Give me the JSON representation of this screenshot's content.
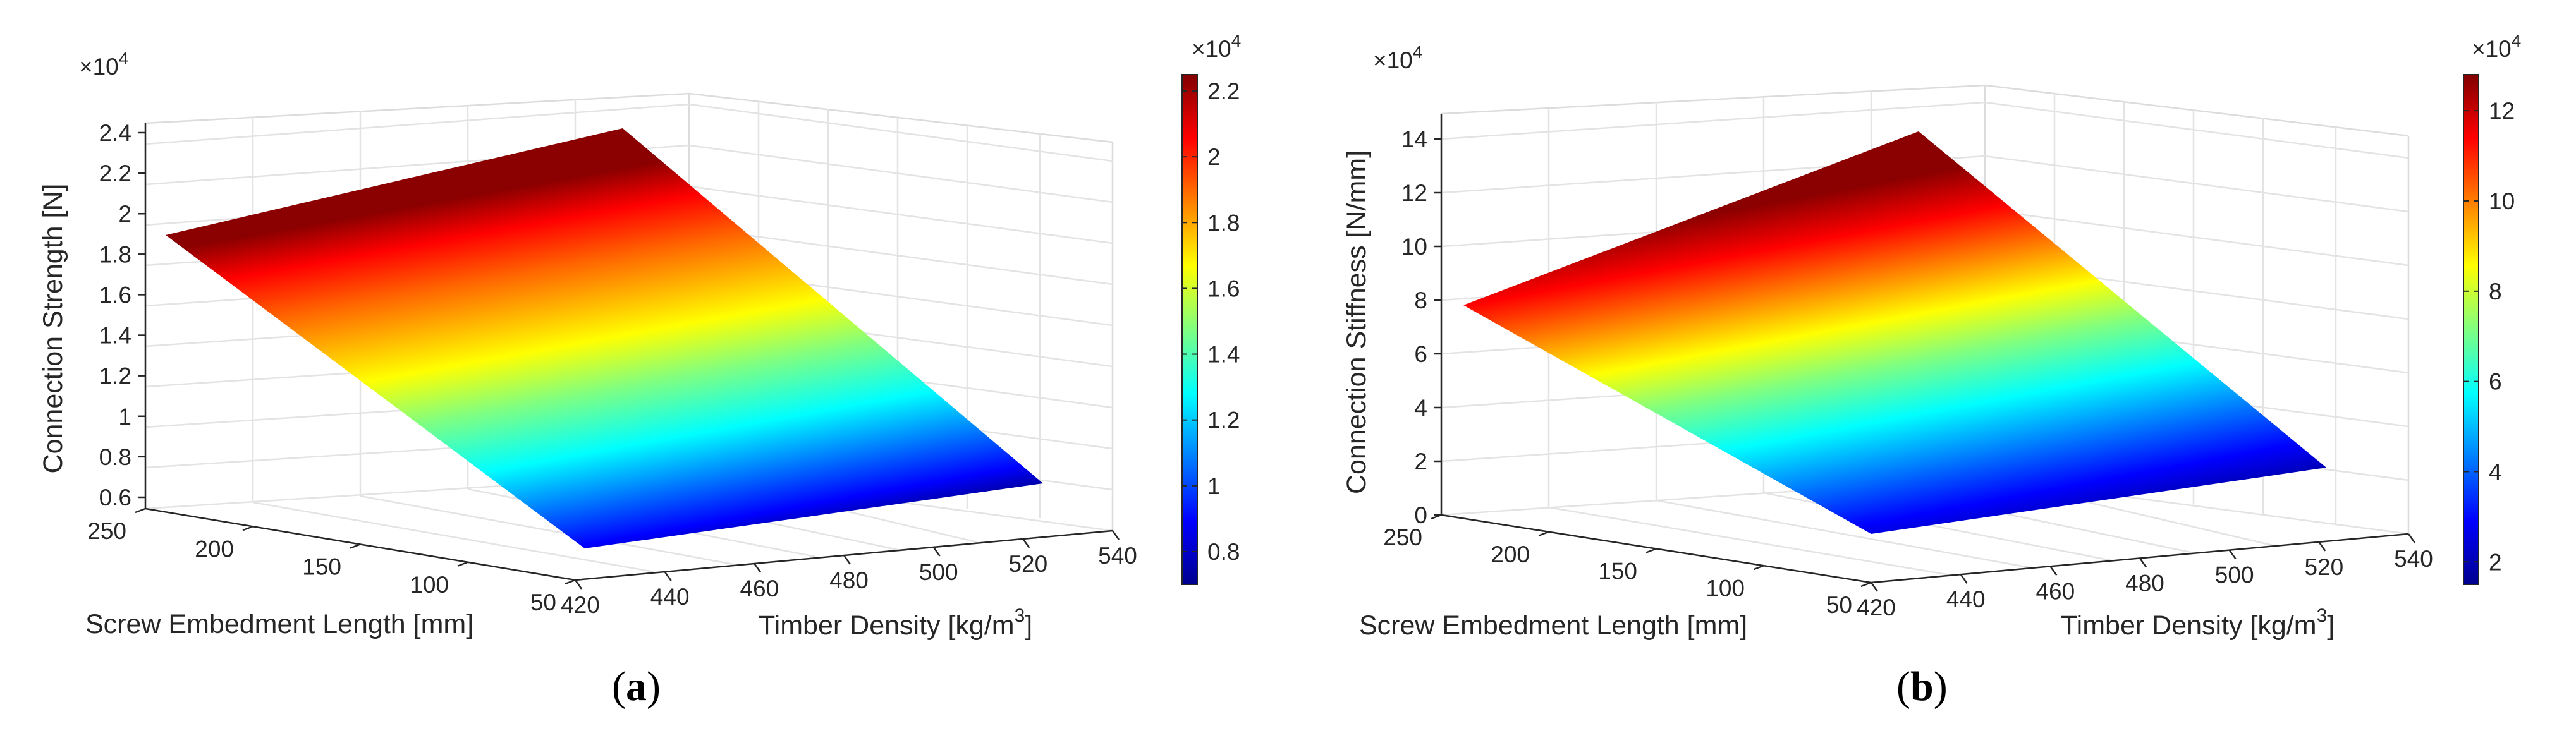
{
  "chart_data": [
    {
      "type": "surface",
      "panel_prefix": "(",
      "panel_letter": "a",
      "panel_suffix": ")",
      "xlabel": "Screw Embedment Length [mm]",
      "ylabel_main": "Timber Density [kg/m",
      "ylabel_sup": "3",
      "ylabel_end": "]",
      "zlabel": "Connection Strength [N]",
      "z_exponent": "×10",
      "z_exponent_power": "4",
      "colorbar_exponent": "×10",
      "colorbar_exponent_power": "4",
      "x_ticks": [
        "250",
        "200",
        "150",
        "100",
        "50"
      ],
      "y_ticks": [
        "420",
        "440",
        "460",
        "480",
        "500",
        "520",
        "540"
      ],
      "z_ticks": [
        "0.6",
        "0.8",
        "1",
        "1.2",
        "1.4",
        "1.6",
        "1.8",
        "2",
        "2.2",
        "2.4"
      ],
      "colorbar_ticks": [
        "0.8",
        "1",
        "1.2",
        "1.4",
        "1.6",
        "1.8",
        "2",
        "2.2"
      ],
      "x_range": [
        50,
        250
      ],
      "y_range": [
        420,
        540
      ],
      "z_range": [
        0.5,
        2.5
      ],
      "colorbar_range": [
        0.7,
        2.25
      ],
      "surface_corners": [
        {
          "embedment_mm": 250,
          "density": 420,
          "value_e4": 1.88
        },
        {
          "embedment_mm": 250,
          "density": 530,
          "value_e4": 2.25
        },
        {
          "embedment_mm": 50,
          "density": 530,
          "value_e4": 0.75
        },
        {
          "embedment_mm": 50,
          "density": 420,
          "value_e4": 0.72
        }
      ],
      "colormap": "jet"
    },
    {
      "type": "surface",
      "panel_prefix": "(",
      "panel_letter": "b",
      "panel_suffix": ")",
      "xlabel": "Screw Embedment Length [mm]",
      "ylabel_main": "Timber Density [kg/m",
      "ylabel_sup": "3",
      "ylabel_end": "]",
      "zlabel": "Connection Stiffness [N/mm]",
      "z_exponent": "×10",
      "z_exponent_power": "4",
      "colorbar_exponent": "×10",
      "colorbar_exponent_power": "4",
      "x_ticks": [
        "250",
        "200",
        "150",
        "100",
        "50"
      ],
      "y_ticks": [
        "420",
        "440",
        "460",
        "480",
        "500",
        "520",
        "540"
      ],
      "z_ticks": [
        "0",
        "2",
        "4",
        "6",
        "8",
        "10",
        "12",
        "14"
      ],
      "colorbar_ticks": [
        "2",
        "4",
        "6",
        "8",
        "10",
        "12"
      ],
      "x_range": [
        50,
        250
      ],
      "y_range": [
        420,
        540
      ],
      "z_range": [
        0,
        15
      ],
      "colorbar_range": [
        1.5,
        12.8
      ],
      "surface_corners": [
        {
          "embedment_mm": 250,
          "density": 420,
          "value_e4": 7.7
        },
        {
          "embedment_mm": 250,
          "density": 530,
          "value_e4": 12.8
        },
        {
          "embedment_mm": 50,
          "density": 530,
          "value_e4": 2.5
        },
        {
          "embedment_mm": 50,
          "density": 420,
          "value_e4": 1.5
        }
      ],
      "colormap": "jet"
    }
  ]
}
